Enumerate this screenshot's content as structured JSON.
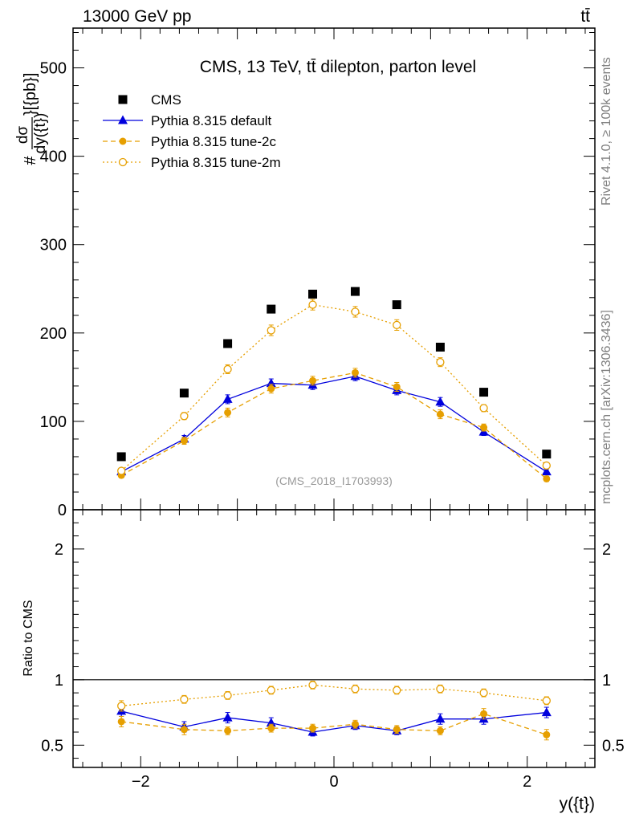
{
  "header": {
    "energy_label": "13000 GeV pp",
    "process_label": "tt̄"
  },
  "plot": {
    "title": "CMS, 13 TeV, tt̄ dilepton, parton level",
    "watermark": "(CMS_2018_I1703993)"
  },
  "side": {
    "rivet": "Rivet 4.1.0, ≥ 100k events",
    "mcplots": "mcplots.cern.ch [arXiv:1306.3436]"
  },
  "chart_data": [
    {
      "type": "scatter",
      "title": "CMS, 13 TeV, tt̄ dilepton, parton level",
      "ylabel_parts": {
        "hash": "#",
        "num": "dσ",
        "den": "dy({t})",
        "unit": "}[{pb}]"
      },
      "ylim": [
        0,
        545
      ],
      "yticks": [
        0,
        100,
        200,
        300,
        400,
        500
      ],
      "xlim": [
        -2.7,
        2.7
      ],
      "x": [
        -2.2,
        -1.55,
        -1.1,
        -0.65,
        -0.22,
        0.22,
        0.65,
        1.1,
        1.55,
        2.2
      ],
      "series": [
        {
          "name": "CMS",
          "color": "#000000",
          "style": "square",
          "values": [
            60,
            132,
            188,
            227,
            244,
            247,
            232,
            184,
            133,
            63
          ],
          "errors": [
            0,
            0,
            0,
            0,
            0,
            0,
            0,
            0,
            0,
            0
          ]
        },
        {
          "name": "Pythia 8.315 default",
          "color": "#0000dd",
          "style": "solid-triangle",
          "values": [
            43,
            80,
            125,
            143,
            141,
            151,
            135,
            122,
            88,
            43
          ],
          "errors": [
            3,
            4,
            5,
            5,
            5,
            5,
            5,
            5,
            4,
            3
          ]
        },
        {
          "name": "Pythia 8.315 tune-2c",
          "color": "#e69f00",
          "style": "dashed-circle",
          "values": [
            39,
            78,
            110,
            137,
            146,
            155,
            139,
            108,
            93,
            35
          ],
          "errors": [
            3,
            4,
            5,
            5,
            5,
            5,
            5,
            5,
            4,
            3
          ]
        },
        {
          "name": "Pythia 8.315 tune-2m",
          "color": "#e69f00",
          "style": "dotted-open-circle",
          "values": [
            44,
            106,
            159,
            203,
            232,
            224,
            209,
            167,
            115,
            50
          ],
          "errors": [
            3,
            4,
            5,
            6,
            6,
            6,
            6,
            5,
            4,
            3
          ]
        }
      ]
    },
    {
      "type": "scatter",
      "ylabel": "Ratio to CMS",
      "xlabel": "y({t})",
      "ylim": [
        0.33,
        2.3
      ],
      "yticks": [
        0.5,
        1,
        2
      ],
      "ytick_labels": [
        "0.5",
        "1",
        "2"
      ],
      "xlim": [
        -2.7,
        2.7
      ],
      "xticks": [
        -2,
        0,
        2
      ],
      "xtick_labels": [
        "−2",
        "0",
        "2"
      ],
      "x": [
        -2.2,
        -1.55,
        -1.1,
        -0.65,
        -0.22,
        0.22,
        0.65,
        1.1,
        1.55,
        2.2
      ],
      "series": [
        {
          "name": "Pythia 8.315 default",
          "color": "#0000dd",
          "style": "solid-triangle",
          "values": [
            0.76,
            0.64,
            0.71,
            0.67,
            0.6,
            0.65,
            0.61,
            0.7,
            0.7,
            0.75
          ],
          "errors": [
            0.04,
            0.04,
            0.04,
            0.04,
            0.03,
            0.03,
            0.03,
            0.04,
            0.04,
            0.04
          ]
        },
        {
          "name": "Pythia 8.315 tune-2c",
          "color": "#e69f00",
          "style": "dashed-circle",
          "values": [
            0.68,
            0.62,
            0.61,
            0.63,
            0.63,
            0.66,
            0.62,
            0.61,
            0.74,
            0.58
          ],
          "errors": [
            0.04,
            0.04,
            0.03,
            0.03,
            0.03,
            0.03,
            0.03,
            0.03,
            0.04,
            0.04
          ]
        },
        {
          "name": "Pythia 8.315 tune-2m",
          "color": "#e69f00",
          "style": "dotted-open-circle",
          "values": [
            0.8,
            0.85,
            0.88,
            0.92,
            0.96,
            0.93,
            0.92,
            0.93,
            0.9,
            0.84
          ],
          "errors": [
            0.04,
            0.03,
            0.03,
            0.03,
            0.03,
            0.03,
            0.03,
            0.03,
            0.03,
            0.03
          ]
        }
      ]
    }
  ]
}
